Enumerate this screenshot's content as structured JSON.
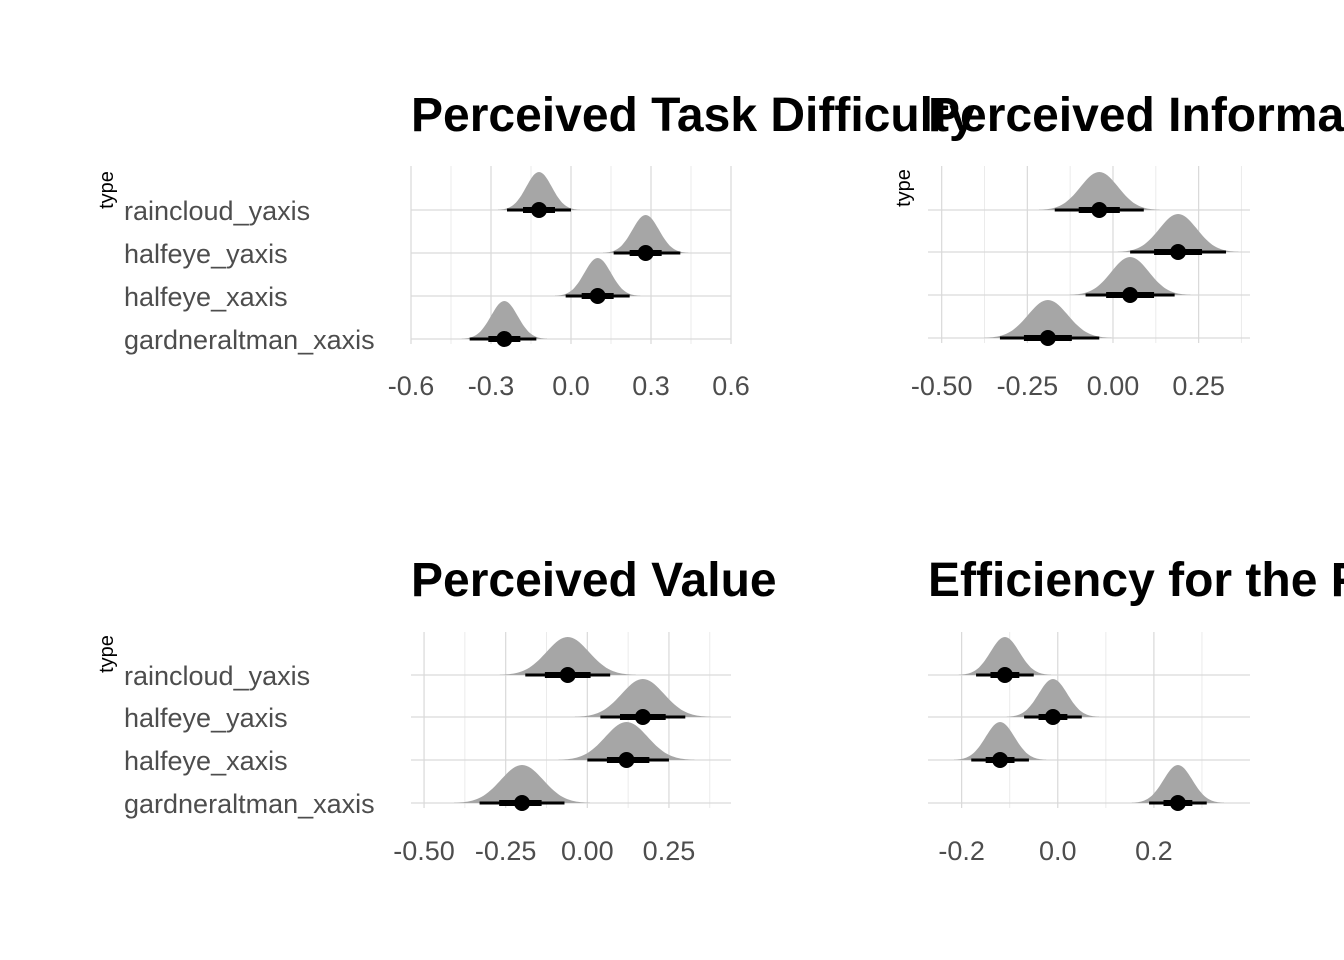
{
  "chart_data": [
    {
      "type": "halfeye",
      "title": "Perceived Task Difficulty",
      "ylabel": "type",
      "categories": [
        "raincloud_yaxis",
        "halfeye_yaxis",
        "halfeye_xaxis",
        "gardneraltman_xaxis"
      ],
      "show_category_labels": true,
      "xlim": [
        -0.6,
        0.6
      ],
      "xticks": [
        -0.6,
        -0.3,
        0.0,
        0.3,
        0.6
      ],
      "xtick_labels": [
        "-0.6",
        "-0.3",
        "0.0",
        "0.3",
        "0.6"
      ],
      "grid": true,
      "estimates": [
        {
          "category": "raincloud_yaxis",
          "median": -0.12,
          "sd": 0.048,
          "ci66": [
            -0.18,
            -0.06
          ],
          "ci95": [
            -0.24,
            0.0
          ]
        },
        {
          "category": "halfeye_yaxis",
          "median": 0.28,
          "sd": 0.05,
          "ci66": [
            0.22,
            0.34
          ],
          "ci95": [
            0.16,
            0.41
          ]
        },
        {
          "category": "halfeye_xaxis",
          "median": 0.1,
          "sd": 0.05,
          "ci66": [
            0.04,
            0.16
          ],
          "ci95": [
            -0.02,
            0.22
          ]
        },
        {
          "category": "gardneraltman_xaxis",
          "median": -0.25,
          "sd": 0.05,
          "ci66": [
            -0.31,
            -0.19
          ],
          "ci95": [
            -0.38,
            -0.13
          ]
        }
      ]
    },
    {
      "type": "halfeye",
      "title": "Perceived Informa",
      "ylabel": "type",
      "categories": [
        "raincloud_yaxis",
        "halfeye_yaxis",
        "halfeye_xaxis",
        "gardneraltman_xaxis"
      ],
      "show_category_labels": false,
      "xlim": [
        -0.54,
        0.4
      ],
      "xticks": [
        -0.5,
        -0.25,
        0.0,
        0.25
      ],
      "xtick_labels": [
        "-0.50",
        "-0.25",
        "0.00",
        "0.25"
      ],
      "grid": true,
      "estimates": [
        {
          "category": "raincloud_yaxis",
          "median": -0.04,
          "sd": 0.055,
          "ci66": [
            -0.1,
            0.02
          ],
          "ci95": [
            -0.17,
            0.09
          ]
        },
        {
          "category": "halfeye_yaxis",
          "median": 0.19,
          "sd": 0.055,
          "ci66": [
            0.12,
            0.26
          ],
          "ci95": [
            0.05,
            0.33
          ]
        },
        {
          "category": "halfeye_xaxis",
          "median": 0.05,
          "sd": 0.055,
          "ci66": [
            -0.02,
            0.12
          ],
          "ci95": [
            -0.08,
            0.18
          ]
        },
        {
          "category": "gardneraltman_xaxis",
          "median": -0.19,
          "sd": 0.058,
          "ci66": [
            -0.26,
            -0.12
          ],
          "ci95": [
            -0.33,
            -0.04
          ]
        }
      ]
    },
    {
      "type": "halfeye",
      "title": "Perceived Value",
      "ylabel": "type",
      "categories": [
        "raincloud_yaxis",
        "halfeye_yaxis",
        "halfeye_xaxis",
        "gardneraltman_xaxis"
      ],
      "show_category_labels": true,
      "xlim": [
        -0.54,
        0.44
      ],
      "xticks": [
        -0.5,
        -0.25,
        0.0,
        0.25
      ],
      "xtick_labels": [
        "-0.50",
        "-0.25",
        "0.00",
        "0.25"
      ],
      "grid": true,
      "estimates": [
        {
          "category": "raincloud_yaxis",
          "median": -0.06,
          "sd": 0.065,
          "ci66": [
            -0.13,
            0.01
          ],
          "ci95": [
            -0.19,
            0.07
          ]
        },
        {
          "category": "halfeye_yaxis",
          "median": 0.17,
          "sd": 0.065,
          "ci66": [
            0.1,
            0.24
          ],
          "ci95": [
            0.04,
            0.3
          ]
        },
        {
          "category": "halfeye_xaxis",
          "median": 0.12,
          "sd": 0.065,
          "ci66": [
            0.06,
            0.19
          ],
          "ci95": [
            0.0,
            0.25
          ]
        },
        {
          "category": "gardneraltman_xaxis",
          "median": -0.2,
          "sd": 0.065,
          "ci66": [
            -0.27,
            -0.14
          ],
          "ci95": [
            -0.33,
            -0.07
          ]
        }
      ]
    },
    {
      "type": "halfeye",
      "title": "Efficiency for the F",
      "ylabel": "",
      "categories": [
        "raincloud_yaxis",
        "halfeye_yaxis",
        "halfeye_xaxis",
        "gardneraltman_xaxis"
      ],
      "show_category_labels": false,
      "xlim": [
        -0.27,
        0.4
      ],
      "xticks": [
        -0.2,
        0.0,
        0.2
      ],
      "xtick_labels": [
        "-0.2",
        "0.0",
        "0.2"
      ],
      "grid": true,
      "estimates": [
        {
          "category": "raincloud_yaxis",
          "median": -0.11,
          "sd": 0.03,
          "ci66": [
            -0.14,
            -0.08
          ],
          "ci95": [
            -0.17,
            -0.05
          ]
        },
        {
          "category": "halfeye_yaxis",
          "median": -0.01,
          "sd": 0.03,
          "ci66": [
            -0.04,
            0.02
          ],
          "ci95": [
            -0.07,
            0.05
          ]
        },
        {
          "category": "halfeye_xaxis",
          "median": -0.12,
          "sd": 0.03,
          "ci66": [
            -0.15,
            -0.09
          ],
          "ci95": [
            -0.18,
            -0.06
          ]
        },
        {
          "category": "gardneraltman_xaxis",
          "median": 0.25,
          "sd": 0.03,
          "ci66": [
            0.22,
            0.28
          ],
          "ci95": [
            0.19,
            0.31
          ]
        }
      ]
    }
  ]
}
